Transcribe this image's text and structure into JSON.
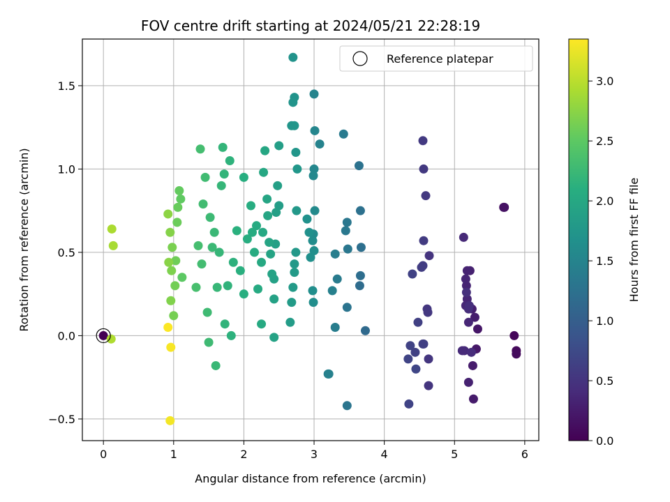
{
  "chart_data": {
    "type": "scatter",
    "title": "FOV centre drift starting at 2024/05/21 22:28:19",
    "xlabel": "Angular distance from reference (arcmin)",
    "ylabel": "Rotation from reference (arcmin)",
    "xlim": [
      -0.3,
      6.2
    ],
    "ylim": [
      -0.63,
      1.78
    ],
    "xticks": [
      0,
      1,
      2,
      3,
      4,
      5,
      6
    ],
    "yticks": [
      -0.5,
      0.0,
      0.5,
      1.0,
      1.5
    ],
    "xtick_labels": [
      "0",
      "1",
      "2",
      "3",
      "4",
      "5",
      "6"
    ],
    "ytick_labels": [
      "−0.5",
      "0.0",
      "0.5",
      "1.0",
      "1.5"
    ],
    "grid": true,
    "legend": {
      "position": "top-right",
      "entries": [
        "Reference platepar"
      ]
    },
    "reference_point": {
      "x": 0.0,
      "y": 0.0
    },
    "colorbar": {
      "label": "Hours from first FF file",
      "colormap": "viridis",
      "range": [
        0.0,
        3.35
      ],
      "ticks": [
        0.0,
        0.5,
        1.0,
        1.5,
        2.0,
        2.5,
        3.0
      ],
      "tick_labels": [
        "0.0",
        "0.5",
        "1.0",
        "1.5",
        "2.0",
        "2.5",
        "3.0"
      ]
    },
    "points": [
      [
        0.0,
        0.0,
        0.0
      ],
      [
        5.85,
        0.0,
        0.05
      ],
      [
        5.88,
        -0.09,
        0.08
      ],
      [
        5.88,
        -0.11,
        0.1
      ],
      [
        5.7,
        0.77,
        0.15
      ],
      [
        5.71,
        0.77,
        0.16
      ],
      [
        5.33,
        0.04,
        0.2
      ],
      [
        5.31,
        -0.08,
        0.22
      ],
      [
        5.27,
        -0.38,
        0.25
      ],
      [
        5.26,
        -0.18,
        0.26
      ],
      [
        5.29,
        0.11,
        0.27
      ],
      [
        5.25,
        0.16,
        0.28
      ],
      [
        5.22,
        0.39,
        0.3
      ],
      [
        5.2,
        -0.28,
        0.31
      ],
      [
        5.18,
        0.39,
        0.32
      ],
      [
        5.17,
        0.3,
        0.33
      ],
      [
        5.16,
        0.34,
        0.34
      ],
      [
        5.18,
        0.22,
        0.35
      ],
      [
        5.2,
        0.08,
        0.36
      ],
      [
        5.16,
        0.18,
        0.37
      ],
      [
        5.14,
        -0.09,
        0.38
      ],
      [
        5.13,
        0.59,
        0.39
      ],
      [
        5.11,
        -0.09,
        0.4
      ],
      [
        5.24,
        -0.1,
        0.42
      ],
      [
        5.2,
        0.16,
        0.43
      ],
      [
        5.21,
        0.18,
        0.44
      ],
      [
        5.17,
        0.26,
        0.45
      ],
      [
        4.64,
        0.48,
        0.5
      ],
      [
        4.63,
        -0.3,
        0.51
      ],
      [
        4.63,
        -0.14,
        0.52
      ],
      [
        4.61,
        0.16,
        0.53
      ],
      [
        4.62,
        0.14,
        0.54
      ],
      [
        4.59,
        0.84,
        0.55
      ],
      [
        4.56,
        1.0,
        0.56
      ],
      [
        4.55,
        1.17,
        0.57
      ],
      [
        4.56,
        0.57,
        0.58
      ],
      [
        4.55,
        0.42,
        0.59
      ],
      [
        4.53,
        0.41,
        0.6
      ],
      [
        4.55,
        -0.05,
        0.61
      ],
      [
        4.56,
        -0.05,
        0.62
      ],
      [
        4.48,
        0.08,
        0.63
      ],
      [
        4.44,
        -0.1,
        0.64
      ],
      [
        4.4,
        0.37,
        0.65
      ],
      [
        4.37,
        -0.06,
        0.66
      ],
      [
        4.35,
        -0.41,
        0.67
      ],
      [
        4.34,
        -0.14,
        0.68
      ],
      [
        4.45,
        -0.2,
        0.7
      ],
      [
        3.73,
        0.03,
        1.15
      ],
      [
        3.65,
        0.3,
        1.18
      ],
      [
        3.66,
        0.36,
        1.2
      ],
      [
        3.67,
        0.53,
        1.22
      ],
      [
        3.66,
        0.75,
        1.24
      ],
      [
        3.64,
        1.02,
        1.26
      ],
      [
        3.47,
        0.17,
        1.28
      ],
      [
        3.47,
        -0.42,
        1.3
      ],
      [
        3.48,
        0.52,
        1.32
      ],
      [
        3.47,
        0.68,
        1.33
      ],
      [
        3.45,
        0.63,
        1.34
      ],
      [
        3.42,
        1.21,
        1.36
      ],
      [
        3.33,
        0.34,
        1.38
      ],
      [
        3.3,
        0.05,
        1.4
      ],
      [
        3.3,
        0.49,
        1.42
      ],
      [
        3.26,
        0.27,
        1.44
      ],
      [
        3.2,
        -0.23,
        1.45
      ],
      [
        3.21,
        -0.23,
        1.46
      ],
      [
        3.08,
        1.15,
        1.48
      ],
      [
        3.0,
        1.45,
        1.5
      ],
      [
        3.01,
        1.23,
        1.52
      ],
      [
        3.0,
        1.0,
        1.54
      ],
      [
        2.99,
        0.96,
        1.56
      ],
      [
        3.01,
        0.75,
        1.58
      ],
      [
        2.99,
        0.61,
        1.6
      ],
      [
        2.98,
        0.57,
        1.62
      ],
      [
        2.99,
        0.2,
        1.63
      ],
      [
        2.98,
        0.27,
        1.64
      ],
      [
        3.0,
        0.51,
        1.65
      ],
      [
        2.95,
        0.47,
        1.66
      ],
      [
        2.93,
        0.62,
        1.67
      ],
      [
        2.9,
        0.7,
        1.68
      ],
      [
        2.72,
        1.43,
        1.7
      ],
      [
        2.7,
        1.67,
        1.71
      ],
      [
        2.7,
        1.4,
        1.72
      ],
      [
        2.68,
        1.26,
        1.73
      ],
      [
        2.72,
        1.26,
        1.74
      ],
      [
        2.74,
        1.1,
        1.75
      ],
      [
        2.76,
        1.0,
        1.76
      ],
      [
        2.75,
        0.75,
        1.77
      ],
      [
        2.74,
        0.5,
        1.78
      ],
      [
        2.72,
        0.43,
        1.79
      ],
      [
        2.7,
        0.29,
        1.8
      ],
      [
        2.72,
        0.38,
        1.81
      ],
      [
        2.68,
        0.2,
        1.82
      ],
      [
        2.66,
        0.08,
        1.83
      ],
      [
        2.5,
        0.78,
        1.85
      ],
      [
        2.5,
        1.14,
        1.86
      ],
      [
        2.48,
        0.9,
        1.87
      ],
      [
        2.46,
        0.74,
        1.88
      ],
      [
        2.45,
        0.55,
        1.89
      ],
      [
        2.43,
        0.34,
        1.9
      ],
      [
        2.43,
        0.22,
        1.91
      ],
      [
        2.43,
        -0.01,
        1.92
      ],
      [
        2.4,
        0.37,
        1.93
      ],
      [
        2.38,
        0.49,
        1.94
      ],
      [
        2.36,
        0.56,
        1.95
      ],
      [
        2.34,
        0.72,
        1.96
      ],
      [
        2.33,
        0.82,
        1.97
      ],
      [
        2.3,
        1.11,
        1.98
      ],
      [
        2.28,
        0.98,
        1.99
      ],
      [
        2.27,
        0.62,
        2.0
      ],
      [
        2.25,
        0.44,
        2.01
      ],
      [
        2.25,
        0.07,
        2.02
      ],
      [
        2.2,
        0.28,
        2.03
      ],
      [
        2.18,
        0.66,
        2.04
      ],
      [
        2.15,
        0.5,
        2.05
      ],
      [
        2.12,
        0.62,
        2.06
      ],
      [
        2.1,
        0.78,
        2.07
      ],
      [
        2.05,
        0.58,
        2.08
      ],
      [
        2.0,
        0.95,
        2.09
      ],
      [
        2.0,
        0.25,
        2.1
      ],
      [
        1.95,
        0.39,
        2.11
      ],
      [
        1.9,
        0.63,
        2.12
      ],
      [
        1.85,
        0.44,
        2.13
      ],
      [
        1.82,
        0.0,
        2.14
      ],
      [
        1.8,
        1.05,
        2.15
      ],
      [
        1.77,
        0.3,
        2.16
      ],
      [
        1.73,
        0.07,
        2.17
      ],
      [
        1.72,
        0.97,
        2.18
      ],
      [
        1.7,
        1.13,
        2.19
      ],
      [
        1.68,
        0.9,
        2.2
      ],
      [
        1.65,
        0.5,
        2.21
      ],
      [
        1.62,
        0.29,
        2.22
      ],
      [
        1.6,
        -0.18,
        2.23
      ],
      [
        1.58,
        0.62,
        2.24
      ],
      [
        1.55,
        0.53,
        2.25
      ],
      [
        1.52,
        0.71,
        2.26
      ],
      [
        1.5,
        -0.04,
        2.27
      ],
      [
        1.48,
        0.14,
        2.28
      ],
      [
        1.45,
        0.95,
        2.29
      ],
      [
        1.42,
        0.79,
        2.3
      ],
      [
        1.4,
        0.43,
        2.31
      ],
      [
        1.38,
        1.12,
        2.32
      ],
      [
        1.35,
        0.54,
        2.33
      ],
      [
        1.32,
        0.29,
        2.34
      ],
      [
        1.12,
        0.35,
        2.5
      ],
      [
        1.1,
        0.82,
        2.52
      ],
      [
        1.08,
        0.87,
        2.54
      ],
      [
        1.06,
        0.77,
        2.56
      ],
      [
        1.05,
        0.68,
        2.58
      ],
      [
        1.03,
        0.45,
        2.6
      ],
      [
        1.02,
        0.3,
        2.62
      ],
      [
        1.0,
        0.12,
        2.64
      ],
      [
        0.98,
        0.53,
        2.66
      ],
      [
        0.97,
        0.39,
        2.68
      ],
      [
        0.96,
        0.21,
        2.7
      ],
      [
        0.95,
        0.62,
        2.72
      ],
      [
        0.93,
        0.44,
        2.74
      ],
      [
        0.92,
        0.73,
        2.76
      ],
      [
        0.14,
        0.54,
        2.9
      ],
      [
        0.12,
        0.64,
        2.92
      ],
      [
        0.11,
        -0.02,
        2.94
      ],
      [
        0.95,
        -0.51,
        3.3
      ],
      [
        0.96,
        -0.07,
        3.32
      ],
      [
        0.92,
        0.05,
        3.34
      ]
    ]
  }
}
